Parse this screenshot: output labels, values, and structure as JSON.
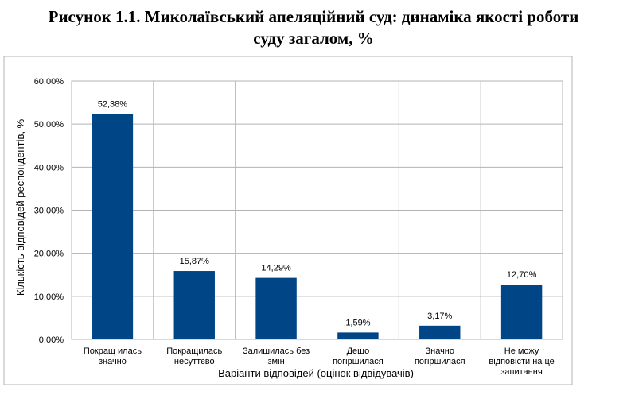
{
  "chart_data": {
    "type": "bar",
    "title_line1": "Рисунок 1.1. Миколаївський апеляційний суд: динаміка якості роботи",
    "title_line2": "суду загалом, %",
    "xlabel": "Варіанти відповідей (оцінок відвідувачів)",
    "ylabel": "Кількість відповідей респондентів, %",
    "ylim": [
      0,
      60
    ],
    "yticks": [
      "0,00%",
      "10,00%",
      "20,00%",
      "30,00%",
      "40,00%",
      "50,00%",
      "60,00%"
    ],
    "categories": [
      [
        "Покращ илась",
        "значно"
      ],
      [
        "Покращилась",
        "несуттєво"
      ],
      [
        "Залишилась  без",
        "змін"
      ],
      [
        "Дещо",
        "погіршилася"
      ],
      [
        "Значно",
        "погіршилася"
      ],
      [
        "Не можу",
        "відповісти на це",
        "запитання"
      ]
    ],
    "values": [
      52.38,
      15.87,
      14.29,
      1.59,
      3.17,
      12.7
    ],
    "value_labels": [
      "52,38%",
      "15,87%",
      "14,29%",
      "1,59%",
      "3,17%",
      "12,70%"
    ],
    "bar_color": "#004586",
    "grid": true,
    "legend": "none"
  }
}
